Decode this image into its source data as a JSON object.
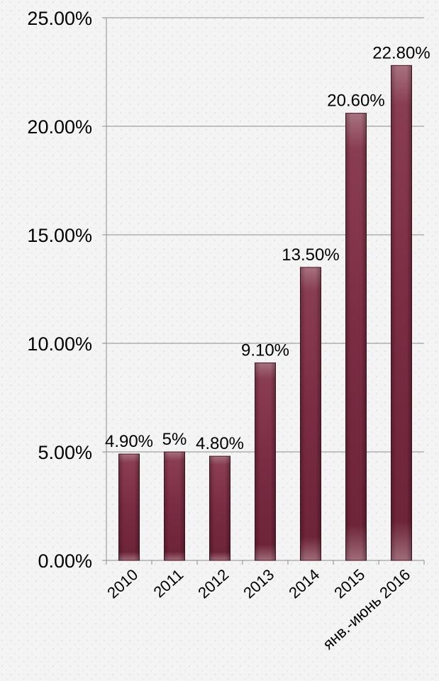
{
  "chart_data": {
    "type": "bar",
    "title": "",
    "xlabel": "",
    "ylabel": "",
    "categories": [
      "2010",
      "2011",
      "2012",
      "2013",
      "2014",
      "2015",
      "янв.-июнь 2016"
    ],
    "values": [
      4.9,
      5.0,
      4.8,
      9.1,
      13.5,
      20.6,
      22.8
    ],
    "data_labels": [
      "4.90%",
      "5%",
      "4.80%",
      "9.10%",
      "13.50%",
      "20.60%",
      "22.80%"
    ],
    "y_ticks": [
      0,
      5,
      10,
      15,
      20,
      25
    ],
    "y_tick_labels": [
      "0.00%",
      "5.00%",
      "10.00%",
      "15.00%",
      "20.00%",
      "25.00%"
    ],
    "ylim": [
      0,
      25
    ],
    "grid": true,
    "legend": "none",
    "colors": {
      "bar_light": "#a8727f",
      "bar_mid": "#7c2f45",
      "bar_dark": "#5a1a2c",
      "bar_edge": "#4a1020",
      "gridline": "#8c8c8c"
    }
  }
}
